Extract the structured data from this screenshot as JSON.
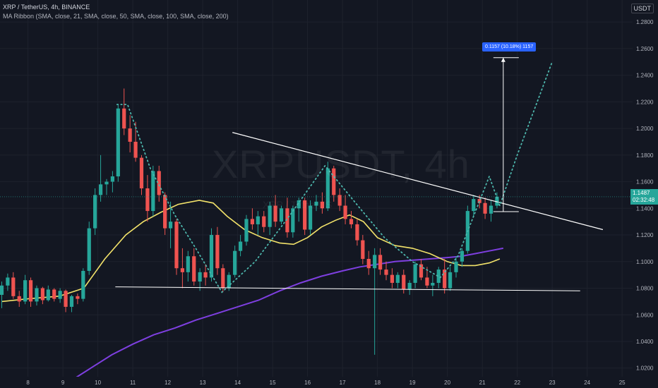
{
  "header": {
    "title": "XRP / TetherUS, 4h, BINANCE",
    "indicator": "MA Ribbon (SMA, close, 21, SMA, close, 50, SMA, close, 100, SMA, close, 200)"
  },
  "watermark": {
    "main": "XRPUSDT, 4h",
    "sub": "XRP / TetherUS"
  },
  "currency_button": "USDT",
  "price_tag": {
    "price": "1.1487",
    "countdown": "02:32:48"
  },
  "measure_label": "0.1157 (10.18%) 1157",
  "colors": {
    "background": "#131722",
    "up": "#26a69a",
    "down": "#ef5350",
    "ma_fast": "#f2e26a",
    "ma_slow": "#7e3fe0",
    "annotation": "#ffffff",
    "projection": "#4db6ac",
    "measure": "#2962ff"
  },
  "chart_data": {
    "type": "candlestick",
    "y_axis": {
      "side": "right",
      "ticks": [
        "1.2800",
        "1.2600",
        "1.2400",
        "1.2200",
        "1.2000",
        "1.1800",
        "1.1600",
        "1.1400",
        "1.1200",
        "1.1000",
        "1.0800",
        "1.0600",
        "1.0400",
        "1.0200"
      ],
      "range": [
        1.0135,
        1.2965
      ]
    },
    "x_axis": {
      "ticks": [
        "8",
        "9",
        "10",
        "11",
        "12",
        "13",
        "14",
        "15",
        "16",
        "17",
        "18",
        "19",
        "20",
        "21",
        "22",
        "23",
        "24",
        "25"
      ],
      "range": [
        7.2,
        25.3
      ]
    },
    "candles": [
      [
        7.25,
        1.075,
        1.085,
        1.065,
        1.082
      ],
      [
        7.42,
        1.082,
        1.091,
        1.078,
        1.088
      ],
      [
        7.58,
        1.088,
        1.092,
        1.072,
        1.074
      ],
      [
        7.75,
        1.074,
        1.078,
        1.066,
        1.07
      ],
      [
        7.92,
        1.07,
        1.09,
        1.068,
        1.086
      ],
      [
        8.08,
        1.086,
        1.088,
        1.066,
        1.07
      ],
      [
        8.25,
        1.07,
        1.082,
        1.067,
        1.08
      ],
      [
        8.42,
        1.08,
        1.081,
        1.068,
        1.071
      ],
      [
        8.58,
        1.071,
        1.082,
        1.07,
        1.079
      ],
      [
        8.75,
        1.079,
        1.08,
        1.07,
        1.072
      ],
      [
        8.92,
        1.072,
        1.08,
        1.069,
        1.078
      ],
      [
        9.08,
        1.078,
        1.079,
        1.062,
        1.066
      ],
      [
        9.25,
        1.066,
        1.075,
        1.062,
        1.074
      ],
      [
        9.42,
        1.074,
        1.076,
        1.068,
        1.072
      ],
      [
        9.58,
        1.072,
        1.095,
        1.07,
        1.093
      ],
      [
        9.75,
        1.093,
        1.13,
        1.09,
        1.125
      ],
      [
        9.92,
        1.125,
        1.155,
        1.12,
        1.15
      ],
      [
        10.08,
        1.15,
        1.18,
        1.145,
        1.158
      ],
      [
        10.25,
        1.158,
        1.162,
        1.15,
        1.16
      ],
      [
        10.42,
        1.16,
        1.168,
        1.152,
        1.164
      ],
      [
        10.58,
        1.164,
        1.218,
        1.16,
        1.215
      ],
      [
        10.75,
        1.215,
        1.23,
        1.195,
        1.2
      ],
      [
        10.92,
        1.2,
        1.21,
        1.182,
        1.19
      ],
      [
        11.08,
        1.19,
        1.205,
        1.175,
        1.178
      ],
      [
        11.25,
        1.178,
        1.18,
        1.15,
        1.155
      ],
      [
        11.42,
        1.155,
        1.165,
        1.13,
        1.138
      ],
      [
        11.58,
        1.138,
        1.172,
        1.134,
        1.168
      ],
      [
        11.75,
        1.168,
        1.172,
        1.145,
        1.15
      ],
      [
        11.92,
        1.15,
        1.152,
        1.12,
        1.125
      ],
      [
        12.08,
        1.125,
        1.145,
        1.11,
        1.13
      ],
      [
        12.25,
        1.13,
        1.132,
        1.09,
        1.095
      ],
      [
        12.42,
        1.095,
        1.11,
        1.08,
        1.092
      ],
      [
        12.58,
        1.092,
        1.108,
        1.085,
        1.104
      ],
      [
        12.75,
        1.104,
        1.11,
        1.082,
        1.085
      ],
      [
        12.92,
        1.085,
        1.095,
        1.078,
        1.092
      ],
      [
        13.08,
        1.092,
        1.098,
        1.082,
        1.088
      ],
      [
        13.25,
        1.088,
        1.125,
        1.085,
        1.12
      ],
      [
        13.42,
        1.12,
        1.126,
        1.09,
        1.095
      ],
      [
        13.58,
        1.095,
        1.098,
        1.077,
        1.08
      ],
      [
        13.75,
        1.08,
        1.092,
        1.078,
        1.09
      ],
      [
        13.92,
        1.09,
        1.112,
        1.088,
        1.108
      ],
      [
        14.08,
        1.108,
        1.12,
        1.104,
        1.115
      ],
      [
        14.25,
        1.115,
        1.135,
        1.112,
        1.132
      ],
      [
        14.42,
        1.132,
        1.14,
        1.124,
        1.128
      ],
      [
        14.58,
        1.128,
        1.138,
        1.12,
        1.134
      ],
      [
        14.75,
        1.134,
        1.138,
        1.122,
        1.126
      ],
      [
        14.92,
        1.126,
        1.145,
        1.12,
        1.142
      ],
      [
        15.08,
        1.142,
        1.15,
        1.126,
        1.13
      ],
      [
        15.25,
        1.13,
        1.142,
        1.128,
        1.14
      ],
      [
        15.42,
        1.14,
        1.148,
        1.118,
        1.122
      ],
      [
        15.58,
        1.122,
        1.142,
        1.118,
        1.14
      ],
      [
        15.75,
        1.14,
        1.148,
        1.13,
        1.146
      ],
      [
        15.92,
        1.146,
        1.148,
        1.12,
        1.124
      ],
      [
        16.08,
        1.124,
        1.146,
        1.12,
        1.142
      ],
      [
        16.25,
        1.142,
        1.15,
        1.138,
        1.145
      ],
      [
        16.42,
        1.145,
        1.152,
        1.136,
        1.14
      ],
      [
        16.58,
        1.14,
        1.175,
        1.138,
        1.17
      ],
      [
        16.75,
        1.17,
        1.172,
        1.145,
        1.15
      ],
      [
        16.92,
        1.15,
        1.155,
        1.138,
        1.142
      ],
      [
        17.08,
        1.142,
        1.15,
        1.128,
        1.132
      ],
      [
        17.25,
        1.132,
        1.138,
        1.125,
        1.128
      ],
      [
        17.42,
        1.128,
        1.132,
        1.112,
        1.116
      ],
      [
        17.58,
        1.116,
        1.12,
        1.098,
        1.102
      ],
      [
        17.75,
        1.102,
        1.108,
        1.09,
        1.095
      ],
      [
        17.92,
        1.095,
        1.11,
        1.03,
        1.105
      ],
      [
        18.08,
        1.105,
        1.11,
        1.09,
        1.094
      ],
      [
        18.25,
        1.094,
        1.1,
        1.086,
        1.09
      ],
      [
        18.42,
        1.09,
        1.095,
        1.08,
        1.084
      ],
      [
        18.58,
        1.084,
        1.092,
        1.08,
        1.09
      ],
      [
        18.75,
        1.09,
        1.094,
        1.076,
        1.079
      ],
      [
        18.92,
        1.079,
        1.086,
        1.075,
        1.084
      ],
      [
        19.08,
        1.084,
        1.1,
        1.08,
        1.098
      ],
      [
        19.25,
        1.098,
        1.102,
        1.086,
        1.088
      ],
      [
        19.42,
        1.088,
        1.096,
        1.08,
        1.082
      ],
      [
        19.58,
        1.082,
        1.09,
        1.074,
        1.084
      ],
      [
        19.75,
        1.084,
        1.096,
        1.08,
        1.094
      ],
      [
        19.92,
        1.094,
        1.102,
        1.076,
        1.08
      ],
      [
        20.08,
        1.08,
        1.096,
        1.078,
        1.092
      ],
      [
        20.25,
        1.092,
        1.104,
        1.088,
        1.1
      ],
      [
        20.42,
        1.1,
        1.11,
        1.096,
        1.108
      ],
      [
        20.58,
        1.108,
        1.142,
        1.106,
        1.138
      ],
      [
        20.75,
        1.138,
        1.15,
        1.134,
        1.147
      ],
      [
        20.92,
        1.147,
        1.15,
        1.14,
        1.144
      ],
      [
        21.08,
        1.144,
        1.148,
        1.132,
        1.136
      ],
      [
        21.25,
        1.136,
        1.146,
        1.13,
        1.142
      ],
      [
        21.42,
        1.142,
        1.152,
        1.14,
        1.1487
      ]
    ],
    "ma_21": [
      [
        7.25,
        1.07
      ],
      [
        8,
        1.072
      ],
      [
        8.9,
        1.074
      ],
      [
        9.6,
        1.08
      ],
      [
        10.2,
        1.102
      ],
      [
        10.8,
        1.12
      ],
      [
        11.3,
        1.13
      ],
      [
        11.8,
        1.137
      ],
      [
        12.3,
        1.143
      ],
      [
        12.9,
        1.146
      ],
      [
        13.3,
        1.144
      ],
      [
        13.7,
        1.134
      ],
      [
        14.2,
        1.124
      ],
      [
        14.7,
        1.118
      ],
      [
        15.2,
        1.114
      ],
      [
        15.6,
        1.113
      ],
      [
        16.0,
        1.118
      ],
      [
        16.4,
        1.126
      ],
      [
        16.8,
        1.131
      ],
      [
        17.2,
        1.135
      ],
      [
        17.6,
        1.13
      ],
      [
        18.0,
        1.118
      ],
      [
        18.5,
        1.112
      ],
      [
        19.0,
        1.11
      ],
      [
        19.5,
        1.106
      ],
      [
        20.0,
        1.1
      ],
      [
        20.4,
        1.097
      ],
      [
        20.8,
        1.097
      ],
      [
        21.2,
        1.099
      ],
      [
        21.5,
        1.102
      ]
    ],
    "ma_200": [
      [
        9.2,
        1.01
      ],
      [
        9.8,
        1.02
      ],
      [
        10.4,
        1.03
      ],
      [
        11.0,
        1.038
      ],
      [
        11.6,
        1.045
      ],
      [
        12.2,
        1.05
      ],
      [
        12.8,
        1.056
      ],
      [
        13.4,
        1.061
      ],
      [
        14.0,
        1.066
      ],
      [
        14.6,
        1.071
      ],
      [
        15.2,
        1.078
      ],
      [
        15.8,
        1.084
      ],
      [
        16.4,
        1.089
      ],
      [
        17.0,
        1.093
      ],
      [
        17.5,
        1.096
      ],
      [
        18.0,
        1.098
      ],
      [
        18.5,
        1.1
      ],
      [
        19.0,
        1.101
      ],
      [
        19.5,
        1.102
      ],
      [
        20.0,
        1.103
      ],
      [
        20.4,
        1.104
      ],
      [
        20.8,
        1.106
      ],
      [
        21.2,
        1.108
      ],
      [
        21.6,
        1.11
      ]
    ],
    "annotations": {
      "resistance_line": [
        [
          13.85,
          1.197
        ],
        [
          24.45,
          1.124
        ]
      ],
      "support_line": [
        [
          10.5,
          1.081
        ],
        [
          23.8,
          1.078
        ]
      ],
      "projection_path": [
        [
          10.55,
          1.218
        ],
        [
          10.85,
          1.218
        ],
        [
          11.5,
          1.17
        ],
        [
          12.2,
          1.135
        ],
        [
          12.8,
          1.11
        ],
        [
          13.55,
          1.077
        ],
        [
          14.5,
          1.1
        ],
        [
          15.5,
          1.135
        ],
        [
          16.5,
          1.172
        ],
        [
          17.5,
          1.14
        ],
        [
          18.2,
          1.118
        ],
        [
          19.0,
          1.1
        ],
        [
          19.8,
          1.088
        ],
        [
          20.3,
          1.104
        ],
        [
          21.2,
          1.164
        ],
        [
          21.5,
          1.142
        ],
        [
          22.0,
          1.18
        ],
        [
          22.5,
          1.215
        ],
        [
          23.0,
          1.25
        ]
      ],
      "measure": {
        "x": 21.6,
        "from": 1.1375,
        "to": 1.2532
      }
    }
  }
}
